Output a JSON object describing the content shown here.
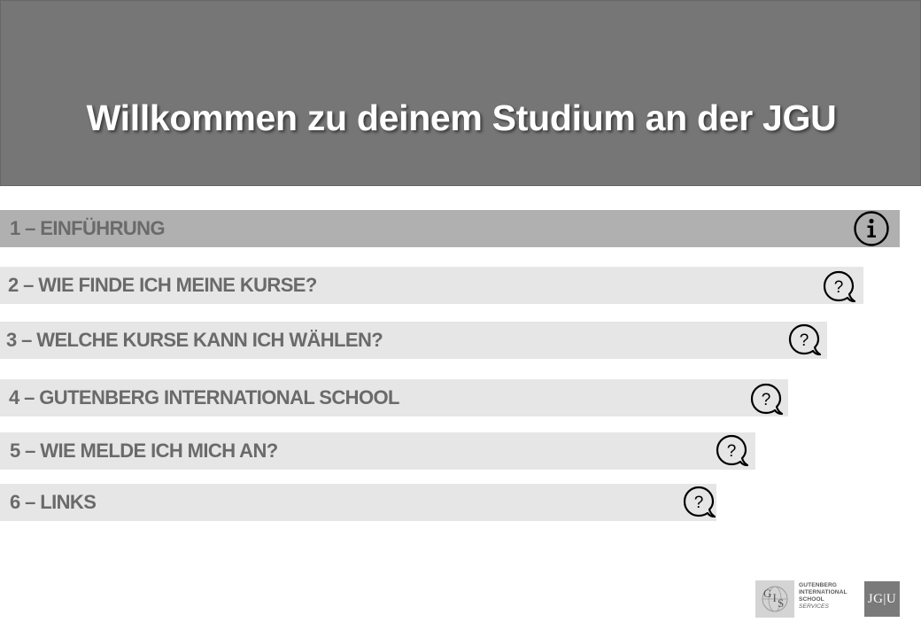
{
  "header": {
    "title": "Willkommen zu deinem Studium an der JGU"
  },
  "menu": {
    "items": [
      {
        "label": "1 – EINFÜHRUNG",
        "icon": "info-icon",
        "active": true
      },
      {
        "label": "2 – WIE FINDE ICH MEINE KURSE?",
        "icon": "question-bubble-icon"
      },
      {
        "label": "3 – WELCHE KURSE KANN ICH WÄHLEN?",
        "icon": "question-bubble-icon"
      },
      {
        "label": "4 – GUTENBERG INTERNATIONAL SCHOOL",
        "icon": "question-bubble-icon"
      },
      {
        "label": "5 – WIE MELDE ICH MICH AN?",
        "icon": "question-bubble-icon"
      },
      {
        "label": "6 – LINKS",
        "icon": "question-bubble-icon"
      }
    ]
  },
  "footer": {
    "gis_logo": {
      "mark": "GIS",
      "lines": [
        "GUTENBERG",
        "INTERNATIONAL",
        "SCHOOL",
        "SERVICES"
      ]
    },
    "jgu_logo": "JG|U"
  },
  "colors": {
    "header_bg": "#767676",
    "item_bg": "#e6e6e6",
    "item_active_bg": "#b0b0b0",
    "label_text": "#6a6a6a"
  }
}
